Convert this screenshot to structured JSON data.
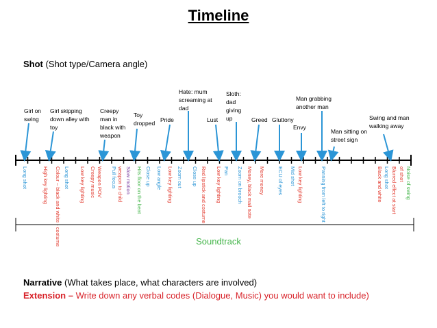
{
  "title": "Timeline",
  "shot_row": {
    "label_bold": "Shot",
    "label_rest": " (Shot type/Camera angle)"
  },
  "captions": [
    "Girl on swing",
    "Girl skipping down alley with toy",
    "Creepy man in black with weapon",
    "Toy dropped",
    "Pride",
    "Hate: mum screaming at dad",
    "Lust",
    "Sloth: dad giving up",
    "Greed",
    "Gluttony",
    "Envy",
    "Man grabbing another man",
    "Man sitting on street sign",
    "Swing and man walking away"
  ],
  "shot_notes": [
    {
      "text": "Long shot",
      "color": "#2b95d6"
    },
    {
      "text": "High key lighting",
      "color": "#e23a2e"
    },
    {
      "text": "Colour – black and white - costume",
      "color": "#e23a2e"
    },
    {
      "text": "Long shot",
      "color": "#2b95d6"
    },
    {
      "text": "Low key lighting",
      "color": "#e23a2e"
    },
    {
      "text": "Creepy music",
      "color": "#e23a2e"
    },
    {
      "text": "Weapon POV",
      "color": "#e23a2e"
    },
    {
      "text": "Pull focus",
      "color": "#2b95d6"
    },
    {
      "text": "weapon to child",
      "color": "#e23a2e"
    },
    {
      "text": "Slow motion",
      "color": "#7b3fa0"
    },
    {
      "text": "Hits floor on the beat",
      "color": "#44b54a"
    },
    {
      "text": "Close up",
      "color": "#2b95d6"
    },
    {
      "text": "Low angle",
      "color": "#2b95d6"
    },
    {
      "text": "Low key lighting",
      "color": "#e23a2e"
    },
    {
      "text": "Zoom out",
      "color": "#2b95d6"
    },
    {
      "text": "Close up",
      "color": "#2b95d6"
    },
    {
      "text": "Red lipstick and costume",
      "color": "#e23a2e"
    },
    {
      "text": "Low key lighting",
      "color": "#e23a2e"
    },
    {
      "text": "Pan",
      "color": "#2b95d6"
    },
    {
      "text": "Zoom on brooch",
      "color": "#2b95d6"
    },
    {
      "text": "Money, black mail note",
      "color": "#e23a2e"
    },
    {
      "text": "More money",
      "color": "#e23a2e"
    },
    {
      "text": "ECU of eyes",
      "color": "#2b95d6"
    },
    {
      "text": "Mid shot",
      "color": "#2b95d6"
    },
    {
      "text": "Low key lighting",
      "color": "#e23a2e"
    },
    {
      "text": "Panning from left to right",
      "color": "#2b95d6"
    },
    {
      "text": "Black and white",
      "color": "#e23a2e"
    },
    {
      "text": "Long shot",
      "color": "#2b95d6"
    },
    {
      "text": "Blurred effect at start",
      "color": "#e23a2e"
    },
    {
      "text": "of shot",
      "color": "#e23a2e"
    },
    {
      "text": "Noise of swing",
      "color": "#44b54a"
    }
  ],
  "soundtrack_label": "Soundtrack",
  "narrative": {
    "bold": "Narrative",
    "rest": " (What takes place, what characters are involved)"
  },
  "extension": {
    "bold": "Extension –",
    "rest": " Write down any verbal codes (Dialogue, Music) you would want to include)"
  },
  "colors": {
    "blue": "#2b95d6",
    "red": "#e23a2e",
    "green": "#44b54a",
    "purple": "#7b3fa0"
  }
}
